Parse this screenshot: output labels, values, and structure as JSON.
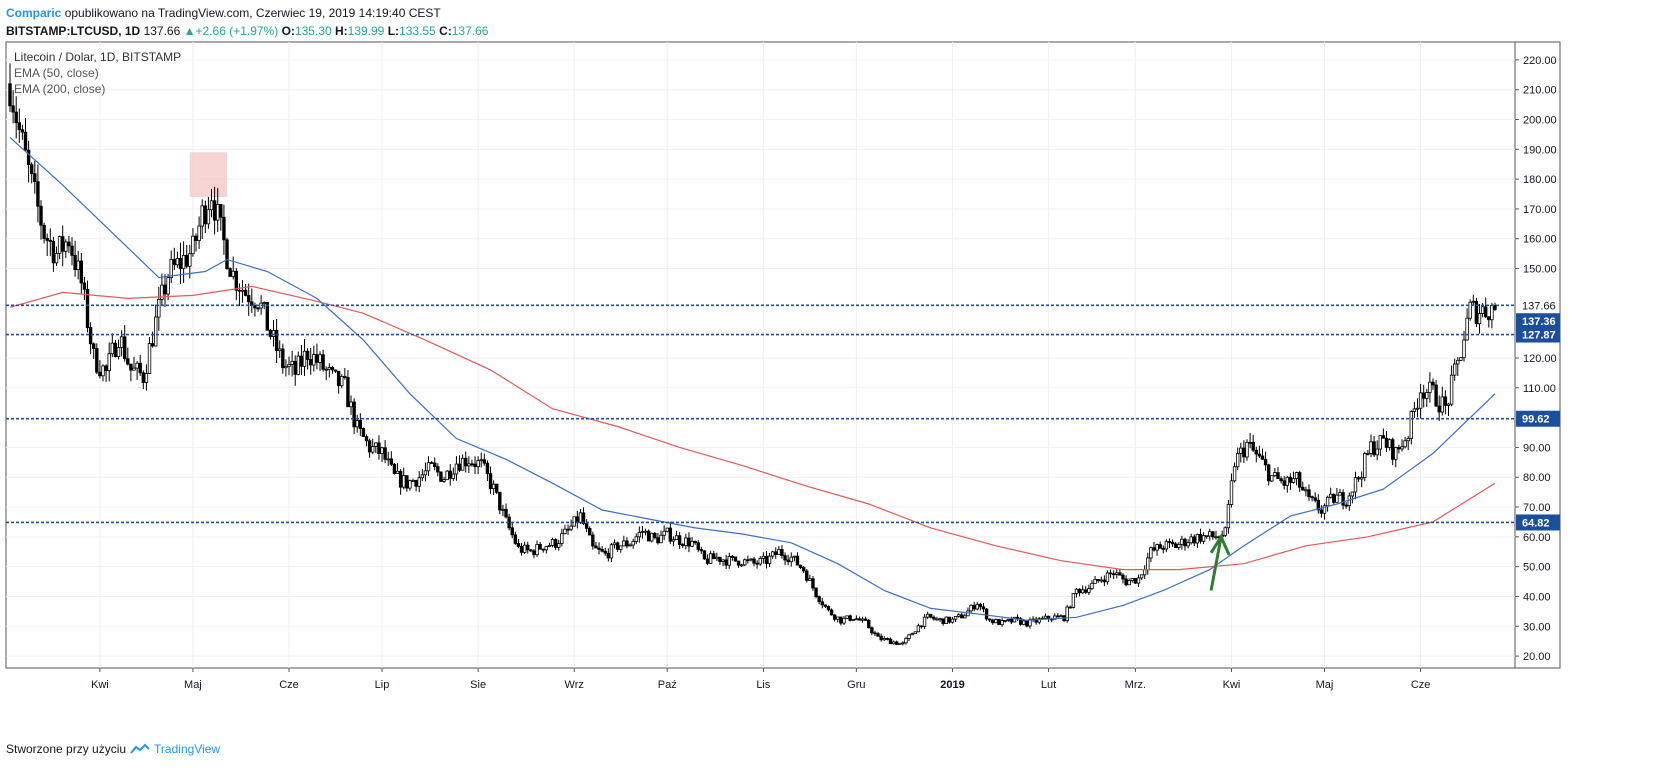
{
  "header": {
    "author": "Comparic",
    "published_text": "opublikowano na TradingView.com, Czerwiec 19, 2019 14:19:40 CEST",
    "symbol": "BITSTAMP:LTCUSD, 1D",
    "price": "137.66",
    "change": "+2.66 (+1.97%)",
    "open_label": "O:",
    "open": "135.30",
    "high_label": "H:",
    "high": "139.99",
    "low_label": "L:",
    "low": "133.55",
    "close_label": "C:",
    "close": "137.66"
  },
  "footer": {
    "created_with": "Stworzone przy użyciu",
    "brand": "TradingView"
  },
  "colors": {
    "up": "#26a69a",
    "candle": "#000000",
    "ema50": "#3b6fc4",
    "ema200": "#e05a5a",
    "level": "#1b4f9c",
    "highlight": "#f4c6c6",
    "arrow": "#2e7d32"
  },
  "chart_data": {
    "type": "candlestick",
    "legend": [
      "Litecoin / Dolar, 1D, BITSTAMP",
      "EMA (50, close)",
      "EMA (200, close)"
    ],
    "y_ticks": [
      "20.00",
      "30.00",
      "40.00",
      "50.00",
      "60.00",
      "70.00",
      "80.00",
      "90.00",
      "110.00",
      "120.00",
      "150.00",
      "160.00",
      "170.00",
      "180.00",
      "190.00",
      "200.00",
      "210.00",
      "220.00"
    ],
    "ylim": [
      16,
      226
    ],
    "x_ticks": [
      {
        "label": "Kwi",
        "date": "2018-04-01"
      },
      {
        "label": "Maj",
        "date": "2018-05-01"
      },
      {
        "label": "Cze",
        "date": "2018-06-01"
      },
      {
        "label": "Lip",
        "date": "2018-07-01"
      },
      {
        "label": "Sie",
        "date": "2018-08-01"
      },
      {
        "label": "Wrz",
        "date": "2018-09-01"
      },
      {
        "label": "Paź",
        "date": "2018-10-01"
      },
      {
        "label": "Lis",
        "date": "2018-11-01"
      },
      {
        "label": "Gru",
        "date": "2018-12-01"
      },
      {
        "label": "2019",
        "date": "2019-01-01"
      },
      {
        "label": "Lut",
        "date": "2019-02-01"
      },
      {
        "label": "Mrz.",
        "date": "2019-03-01"
      },
      {
        "label": "Kwi",
        "date": "2019-04-01"
      },
      {
        "label": "Maj",
        "date": "2019-05-01"
      },
      {
        "label": "Cze",
        "date": "2019-06-01"
      }
    ],
    "date_range": [
      "2018-03-03",
      "2019-06-25"
    ],
    "levels": [
      {
        "value": 137.66,
        "label": "137.66",
        "style": "current"
      },
      {
        "value": 137.36,
        "label": "137.36",
        "style": "box"
      },
      {
        "value": 127.87,
        "label": "127.87",
        "style": "box"
      },
      {
        "value": 99.62,
        "label": "99.62",
        "style": "box"
      },
      {
        "value": 64.82,
        "label": "64.82",
        "style": "box"
      }
    ],
    "highlight_box": {
      "date_start": "2018-04-30",
      "date_end": "2018-05-12",
      "low": 174,
      "high": 189
    },
    "arrow": {
      "date": "2019-03-28",
      "from": 42,
      "to": 60
    },
    "close_path": [
      [
        "2018-03-03",
        212
      ],
      [
        "2018-03-06",
        196
      ],
      [
        "2018-03-10",
        178
      ],
      [
        "2018-03-14",
        162
      ],
      [
        "2018-03-18",
        155
      ],
      [
        "2018-03-22",
        160
      ],
      [
        "2018-03-26",
        145
      ],
      [
        "2018-03-30",
        120
      ],
      [
        "2018-04-03",
        115
      ],
      [
        "2018-04-07",
        128
      ],
      [
        "2018-04-11",
        116
      ],
      [
        "2018-04-15",
        114
      ],
      [
        "2018-04-19",
        132
      ],
      [
        "2018-04-23",
        148
      ],
      [
        "2018-04-27",
        152
      ],
      [
        "2018-05-01",
        156
      ],
      [
        "2018-05-04",
        168
      ],
      [
        "2018-05-07",
        176
      ],
      [
        "2018-05-10",
        162
      ],
      [
        "2018-05-14",
        148
      ],
      [
        "2018-05-18",
        142
      ],
      [
        "2018-05-22",
        140
      ],
      [
        "2018-05-26",
        128
      ],
      [
        "2018-05-30",
        118
      ],
      [
        "2018-06-03",
        115
      ],
      [
        "2018-06-07",
        122
      ],
      [
        "2018-06-11",
        118
      ],
      [
        "2018-06-15",
        113
      ],
      [
        "2018-06-19",
        110
      ],
      [
        "2018-06-23",
        96
      ],
      [
        "2018-06-27",
        90
      ],
      [
        "2018-07-01",
        88
      ],
      [
        "2018-07-05",
        80
      ],
      [
        "2018-07-09",
        78
      ],
      [
        "2018-07-13",
        80
      ],
      [
        "2018-07-17",
        83
      ],
      [
        "2018-07-21",
        80
      ],
      [
        "2018-07-25",
        85
      ],
      [
        "2018-07-29",
        86
      ],
      [
        "2018-08-02",
        84
      ],
      [
        "2018-08-06",
        76
      ],
      [
        "2018-08-10",
        65
      ],
      [
        "2018-08-14",
        56
      ],
      [
        "2018-08-18",
        55
      ],
      [
        "2018-08-22",
        57
      ],
      [
        "2018-08-26",
        58
      ],
      [
        "2018-08-30",
        62
      ],
      [
        "2018-09-03",
        67
      ],
      [
        "2018-09-07",
        56
      ],
      [
        "2018-09-11",
        54
      ],
      [
        "2018-09-15",
        57
      ],
      [
        "2018-09-19",
        58
      ],
      [
        "2018-09-23",
        62
      ],
      [
        "2018-09-27",
        59
      ],
      [
        "2018-10-01",
        61
      ],
      [
        "2018-10-05",
        59
      ],
      [
        "2018-10-09",
        58
      ],
      [
        "2018-10-13",
        52
      ],
      [
        "2018-10-17",
        53
      ],
      [
        "2018-10-21",
        52
      ],
      [
        "2018-10-25",
        52
      ],
      [
        "2018-10-29",
        51
      ],
      [
        "2018-11-02",
        52
      ],
      [
        "2018-11-06",
        55
      ],
      [
        "2018-11-10",
        53
      ],
      [
        "2018-11-14",
        49
      ],
      [
        "2018-11-18",
        41
      ],
      [
        "2018-11-22",
        35
      ],
      [
        "2018-11-26",
        32
      ],
      [
        "2018-11-30",
        33
      ],
      [
        "2018-12-04",
        31
      ],
      [
        "2018-12-08",
        26
      ],
      [
        "2018-12-12",
        25
      ],
      [
        "2018-12-16",
        24
      ],
      [
        "2018-12-20",
        29
      ],
      [
        "2018-12-24",
        33
      ],
      [
        "2018-12-28",
        32
      ],
      [
        "2019-01-01",
        32
      ],
      [
        "2019-01-05",
        34
      ],
      [
        "2019-01-09",
        38
      ],
      [
        "2019-01-13",
        32
      ],
      [
        "2019-01-17",
        31
      ],
      [
        "2019-01-21",
        32
      ],
      [
        "2019-01-25",
        31
      ],
      [
        "2019-01-29",
        32
      ],
      [
        "2019-02-02",
        33
      ],
      [
        "2019-02-06",
        33
      ],
      [
        "2019-02-10",
        42
      ],
      [
        "2019-02-14",
        43
      ],
      [
        "2019-02-18",
        46
      ],
      [
        "2019-02-22",
        48
      ],
      [
        "2019-02-26",
        45
      ],
      [
        "2019-03-02",
        46
      ],
      [
        "2019-03-06",
        55
      ],
      [
        "2019-03-10",
        57
      ],
      [
        "2019-03-14",
        57
      ],
      [
        "2019-03-18",
        59
      ],
      [
        "2019-03-22",
        60
      ],
      [
        "2019-03-26",
        60
      ],
      [
        "2019-03-30",
        61
      ],
      [
        "2019-04-02",
        85
      ],
      [
        "2019-04-06",
        91
      ],
      [
        "2019-04-10",
        86
      ],
      [
        "2019-04-14",
        80
      ],
      [
        "2019-04-18",
        78
      ],
      [
        "2019-04-22",
        79
      ],
      [
        "2019-04-26",
        72
      ],
      [
        "2019-04-30",
        69
      ],
      [
        "2019-05-04",
        73
      ],
      [
        "2019-05-08",
        73
      ],
      [
        "2019-05-12",
        80
      ],
      [
        "2019-05-16",
        90
      ],
      [
        "2019-05-20",
        92
      ],
      [
        "2019-05-24",
        88
      ],
      [
        "2019-05-28",
        95
      ],
      [
        "2019-06-01",
        110
      ],
      [
        "2019-06-05",
        108
      ],
      [
        "2019-06-09",
        103
      ],
      [
        "2019-06-13",
        118
      ],
      [
        "2019-06-17",
        136
      ],
      [
        "2019-06-21",
        136
      ],
      [
        "2019-06-25",
        137
      ]
    ],
    "ema50": [
      [
        "2018-03-03",
        194
      ],
      [
        "2018-03-20",
        178
      ],
      [
        "2018-04-05",
        162
      ],
      [
        "2018-04-20",
        147
      ],
      [
        "2018-05-05",
        149
      ],
      [
        "2018-05-12",
        153
      ],
      [
        "2018-05-25",
        149
      ],
      [
        "2018-06-10",
        140
      ],
      [
        "2018-06-25",
        126
      ],
      [
        "2018-07-10",
        108
      ],
      [
        "2018-07-25",
        93
      ],
      [
        "2018-08-10",
        86
      ],
      [
        "2018-08-25",
        78
      ],
      [
        "2018-09-10",
        69
      ],
      [
        "2018-09-25",
        66
      ],
      [
        "2018-10-10",
        63
      ],
      [
        "2018-10-25",
        61
      ],
      [
        "2018-11-10",
        58
      ],
      [
        "2018-11-25",
        51
      ],
      [
        "2018-12-10",
        42
      ],
      [
        "2018-12-25",
        36
      ],
      [
        "2019-01-10",
        34
      ],
      [
        "2019-01-25",
        32
      ],
      [
        "2019-02-10",
        33
      ],
      [
        "2019-02-25",
        37
      ],
      [
        "2019-03-10",
        42
      ],
      [
        "2019-03-25",
        49
      ],
      [
        "2019-04-05",
        57
      ],
      [
        "2019-04-20",
        67
      ],
      [
        "2019-05-05",
        71
      ],
      [
        "2019-05-20",
        76
      ],
      [
        "2019-06-05",
        88
      ],
      [
        "2019-06-25",
        108
      ]
    ],
    "ema200": [
      [
        "2018-03-03",
        137
      ],
      [
        "2018-03-20",
        142
      ],
      [
        "2018-04-10",
        140
      ],
      [
        "2018-05-01",
        141
      ],
      [
        "2018-05-20",
        144
      ],
      [
        "2018-06-10",
        139
      ],
      [
        "2018-06-25",
        135
      ],
      [
        "2018-07-15",
        126
      ],
      [
        "2018-08-05",
        116
      ],
      [
        "2018-08-25",
        103
      ],
      [
        "2018-09-15",
        97
      ],
      [
        "2018-10-05",
        90
      ],
      [
        "2018-10-25",
        84
      ],
      [
        "2018-11-15",
        77
      ],
      [
        "2018-12-05",
        71
      ],
      [
        "2018-12-25",
        63
      ],
      [
        "2019-01-15",
        57
      ],
      [
        "2019-02-05",
        52
      ],
      [
        "2019-02-25",
        49
      ],
      [
        "2019-03-15",
        49
      ],
      [
        "2019-04-05",
        51
      ],
      [
        "2019-04-25",
        57
      ],
      [
        "2019-05-15",
        60
      ],
      [
        "2019-06-05",
        65
      ],
      [
        "2019-06-25",
        78
      ]
    ]
  }
}
